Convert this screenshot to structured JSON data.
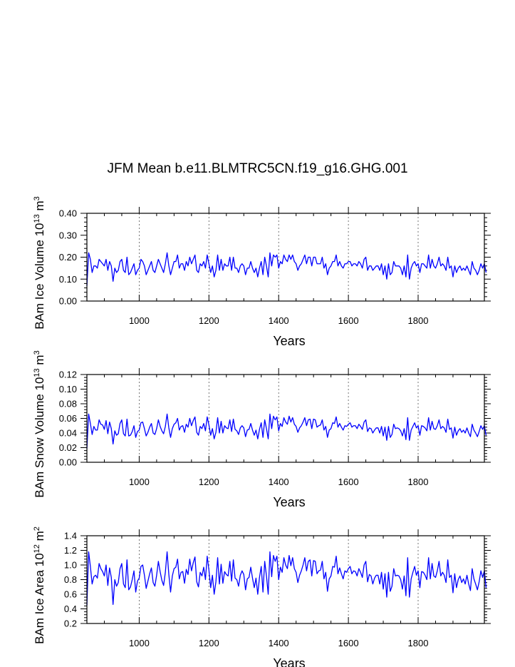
{
  "title": "JFM Mean b.e11.BLMTRC5CN.f19_g16.GHG.001",
  "series_color": "#0000ff",
  "chart_data": [
    {
      "type": "line",
      "xlabel": "Years",
      "ylabel": "BAm Ice Volume 10^13 m^3",
      "ylabel_parts": {
        "main": "BAm Ice Volume 10",
        "exp1": "13",
        "unit": " m",
        "exp2": "3"
      },
      "xlim": [
        850,
        1990
      ],
      "ylim": [
        0.0,
        0.4
      ],
      "xticks": [
        1000,
        1200,
        1400,
        1600,
        1800
      ],
      "xtick_labels": [
        "1000",
        "1200",
        "1400",
        "1600",
        "1800"
      ],
      "yticks": [
        0.0,
        0.1,
        0.2,
        0.3,
        0.4
      ],
      "ytick_labels": [
        "0.00",
        "0.10",
        "0.20",
        "0.30",
        "0.40"
      ],
      "grid": "vertical dashed at x ticks",
      "series": [
        {
          "x_start": 850,
          "x_step": 5,
          "values": [
            0.07,
            0.22,
            0.19,
            0.13,
            0.16,
            0.16,
            0.15,
            0.19,
            0.18,
            0.17,
            0.16,
            0.19,
            0.14,
            0.18,
            0.16,
            0.09,
            0.15,
            0.13,
            0.14,
            0.18,
            0.19,
            0.14,
            0.13,
            0.2,
            0.12,
            0.13,
            0.15,
            0.17,
            0.12,
            0.14,
            0.15,
            0.19,
            0.18,
            0.16,
            0.12,
            0.14,
            0.16,
            0.18,
            0.14,
            0.13,
            0.16,
            0.19,
            0.17,
            0.15,
            0.13,
            0.17,
            0.22,
            0.16,
            0.12,
            0.15,
            0.18,
            0.18,
            0.21,
            0.15,
            0.17,
            0.17,
            0.14,
            0.18,
            0.16,
            0.2,
            0.17,
            0.19,
            0.21,
            0.14,
            0.13,
            0.17,
            0.16,
            0.18,
            0.15,
            0.21,
            0.17,
            0.13,
            0.16,
            0.11,
            0.14,
            0.21,
            0.14,
            0.19,
            0.14,
            0.17,
            0.16,
            0.16,
            0.2,
            0.14,
            0.2,
            0.15,
            0.15,
            0.13,
            0.16,
            0.17,
            0.16,
            0.12,
            0.15,
            0.15,
            0.18,
            0.15,
            0.13,
            0.15,
            0.11,
            0.15,
            0.18,
            0.12,
            0.2,
            0.16,
            0.11,
            0.22,
            0.16,
            0.21,
            0.2,
            0.21,
            0.15,
            0.18,
            0.17,
            0.21,
            0.19,
            0.18,
            0.21,
            0.19,
            0.21,
            0.18,
            0.17,
            0.14,
            0.16,
            0.17,
            0.19,
            0.21,
            0.17,
            0.2,
            0.2,
            0.16,
            0.2,
            0.2,
            0.17,
            0.17,
            0.17,
            0.2,
            0.15,
            0.17,
            0.12,
            0.15,
            0.16,
            0.18,
            0.18,
            0.21,
            0.16,
            0.18,
            0.16,
            0.15,
            0.17,
            0.17,
            0.18,
            0.18,
            0.16,
            0.17,
            0.17,
            0.16,
            0.18,
            0.17,
            0.15,
            0.19,
            0.2,
            0.14,
            0.16,
            0.16,
            0.14,
            0.15,
            0.16,
            0.16,
            0.14,
            0.17,
            0.12,
            0.16,
            0.1,
            0.17,
            0.12,
            0.13,
            0.18,
            0.16,
            0.16,
            0.16,
            0.15,
            0.12,
            0.16,
            0.11,
            0.21,
            0.1,
            0.15,
            0.17,
            0.18,
            0.16,
            0.17,
            0.13,
            0.17,
            0.17,
            0.16,
            0.15,
            0.21,
            0.15,
            0.19,
            0.16,
            0.15,
            0.17,
            0.2,
            0.16,
            0.17,
            0.16,
            0.14,
            0.2,
            0.15,
            0.16,
            0.11,
            0.16,
            0.13,
            0.15,
            0.16,
            0.14,
            0.15,
            0.14,
            0.16,
            0.14,
            0.12,
            0.18,
            0.15,
            0.14,
            0.12,
            0.14,
            0.17,
            0.15,
            0.17,
            0.13
          ]
        }
      ]
    },
    {
      "type": "line",
      "xlabel": "Years",
      "ylabel": "BAm Snow Volume 10^13 m^3",
      "ylabel_parts": {
        "main": "BAm Snow Volume 10",
        "exp1": "13",
        "unit": " m",
        "exp2": "3"
      },
      "xlim": [
        850,
        1990
      ],
      "ylim": [
        0.0,
        0.12
      ],
      "xticks": [
        1000,
        1200,
        1400,
        1600,
        1800
      ],
      "xtick_labels": [
        "1000",
        "1200",
        "1400",
        "1600",
        "1800"
      ],
      "yticks": [
        0.0,
        0.02,
        0.04,
        0.06,
        0.08,
        0.1,
        0.12
      ],
      "ytick_labels": [
        "0.00",
        "0.02",
        "0.04",
        "0.06",
        "0.08",
        "0.10",
        "0.12"
      ],
      "grid": "vertical dashed at x ticks",
      "series": [
        {
          "x_start": 850,
          "x_step": 5,
          "values": [
            0.019,
            0.066,
            0.053,
            0.038,
            0.049,
            0.044,
            0.044,
            0.058,
            0.052,
            0.051,
            0.045,
            0.057,
            0.039,
            0.055,
            0.046,
            0.025,
            0.043,
            0.037,
            0.039,
            0.053,
            0.058,
            0.039,
            0.036,
            0.059,
            0.036,
            0.037,
            0.042,
            0.05,
            0.034,
            0.042,
            0.044,
            0.054,
            0.055,
            0.046,
            0.036,
            0.041,
            0.048,
            0.053,
            0.04,
            0.038,
            0.046,
            0.058,
            0.049,
            0.043,
            0.039,
            0.049,
            0.066,
            0.047,
            0.034,
            0.046,
            0.052,
            0.054,
            0.06,
            0.044,
            0.049,
            0.05,
            0.041,
            0.052,
            0.048,
            0.06,
            0.05,
            0.057,
            0.062,
            0.041,
            0.037,
            0.049,
            0.046,
            0.053,
            0.043,
            0.062,
            0.051,
            0.037,
            0.046,
            0.032,
            0.041,
            0.061,
            0.04,
            0.056,
            0.04,
            0.05,
            0.047,
            0.046,
            0.058,
            0.042,
            0.059,
            0.045,
            0.043,
            0.038,
            0.047,
            0.05,
            0.047,
            0.035,
            0.044,
            0.045,
            0.053,
            0.044,
            0.037,
            0.044,
            0.032,
            0.045,
            0.054,
            0.034,
            0.058,
            0.046,
            0.032,
            0.066,
            0.046,
            0.063,
            0.058,
            0.062,
            0.043,
            0.053,
            0.049,
            0.061,
            0.055,
            0.052,
            0.063,
            0.055,
            0.061,
            0.052,
            0.049,
            0.041,
            0.047,
            0.05,
            0.055,
            0.061,
            0.05,
            0.058,
            0.059,
            0.046,
            0.059,
            0.058,
            0.048,
            0.05,
            0.051,
            0.058,
            0.044,
            0.049,
            0.034,
            0.044,
            0.046,
            0.054,
            0.053,
            0.062,
            0.048,
            0.053,
            0.048,
            0.044,
            0.05,
            0.049,
            0.052,
            0.054,
            0.048,
            0.05,
            0.05,
            0.046,
            0.052,
            0.049,
            0.045,
            0.055,
            0.058,
            0.042,
            0.047,
            0.046,
            0.04,
            0.044,
            0.047,
            0.047,
            0.04,
            0.049,
            0.036,
            0.048,
            0.03,
            0.049,
            0.034,
            0.038,
            0.052,
            0.046,
            0.047,
            0.046,
            0.043,
            0.036,
            0.046,
            0.031,
            0.061,
            0.03,
            0.044,
            0.049,
            0.054,
            0.047,
            0.05,
            0.037,
            0.05,
            0.049,
            0.047,
            0.043,
            0.061,
            0.044,
            0.056,
            0.046,
            0.045,
            0.05,
            0.058,
            0.046,
            0.049,
            0.047,
            0.041,
            0.059,
            0.045,
            0.047,
            0.033,
            0.048,
            0.037,
            0.043,
            0.046,
            0.041,
            0.044,
            0.04,
            0.047,
            0.04,
            0.035,
            0.052,
            0.044,
            0.04,
            0.035,
            0.042,
            0.05,
            0.045,
            0.05,
            0.037
          ]
        }
      ]
    },
    {
      "type": "line",
      "xlabel": "Years",
      "ylabel": "BAm Ice Area 10^12 m^2",
      "ylabel_parts": {
        "main": "BAm Ice Area 10",
        "exp1": "12",
        "unit": " m",
        "exp2": "2"
      },
      "xlim": [
        850,
        1990
      ],
      "ylim": [
        0.2,
        1.4
      ],
      "xticks": [
        1000,
        1200,
        1400,
        1600,
        1800
      ],
      "xtick_labels": [
        "1000",
        "1200",
        "1400",
        "1600",
        "1800"
      ],
      "yticks": [
        0.2,
        0.4,
        0.6,
        0.8,
        1.0,
        1.2,
        1.4
      ],
      "ytick_labels": [
        "0.2",
        "0.4",
        "0.6",
        "0.8",
        "1.0",
        "1.2",
        "1.4"
      ],
      "grid": "vertical dashed at x ticks",
      "series": [
        {
          "x_start": 850,
          "x_step": 5,
          "values": [
            0.45,
            1.18,
            0.98,
            0.74,
            0.84,
            0.86,
            0.82,
            1.02,
            0.95,
            0.91,
            0.85,
            1.0,
            0.72,
            0.96,
            0.83,
            0.46,
            0.8,
            0.71,
            0.76,
            0.95,
            1.02,
            0.74,
            0.69,
            1.07,
            0.66,
            0.7,
            0.8,
            0.92,
            0.63,
            0.78,
            0.82,
            0.98,
            1.0,
            0.86,
            0.68,
            0.78,
            0.88,
            0.96,
            0.76,
            0.71,
            0.86,
            1.05,
            0.91,
            0.79,
            0.72,
            0.9,
            1.18,
            0.87,
            0.63,
            0.85,
            0.95,
            0.97,
            1.08,
            0.81,
            0.9,
            0.91,
            0.75,
            0.94,
            0.87,
            1.08,
            0.92,
            1.03,
            1.11,
            0.77,
            0.7,
            0.9,
            0.85,
            0.97,
            0.8,
            1.12,
            0.93,
            0.69,
            0.86,
            0.6,
            0.77,
            1.1,
            0.74,
            1.01,
            0.75,
            0.91,
            0.87,
            0.85,
            1.05,
            0.78,
            1.07,
            0.82,
            0.8,
            0.71,
            0.86,
            0.92,
            0.87,
            0.66,
            0.81,
            0.83,
            0.97,
            0.82,
            0.69,
            0.82,
            0.6,
            0.83,
            0.98,
            0.63,
            1.05,
            0.85,
            0.6,
            1.18,
            0.84,
            1.13,
            1.05,
            1.12,
            0.8,
            0.97,
            0.9,
            1.1,
            1.0,
            0.95,
            1.13,
            0.99,
            1.1,
            0.95,
            0.9,
            0.76,
            0.86,
            0.92,
            1.0,
            1.1,
            0.92,
            1.05,
            1.07,
            0.85,
            1.06,
            1.05,
            0.88,
            0.92,
            0.93,
            1.05,
            0.81,
            0.9,
            0.64,
            0.81,
            0.85,
            0.98,
            0.97,
            1.12,
            0.88,
            0.96,
            0.88,
            0.81,
            0.92,
            0.9,
            0.95,
            0.98,
            0.88,
            0.92,
            0.91,
            0.85,
            0.95,
            0.9,
            0.83,
            1.0,
            1.05,
            0.77,
            0.87,
            0.85,
            0.74,
            0.82,
            0.86,
            0.86,
            0.74,
            0.9,
            0.67,
            0.88,
            0.56,
            0.9,
            0.64,
            0.71,
            0.95,
            0.85,
            0.86,
            0.85,
            0.8,
            0.67,
            0.85,
            0.58,
            1.1,
            0.56,
            0.81,
            0.9,
            0.98,
            0.86,
            0.92,
            0.69,
            0.91,
            0.9,
            0.86,
            0.8,
            1.1,
            0.81,
            1.02,
            0.85,
            0.83,
            0.92,
            1.05,
            0.85,
            0.9,
            0.86,
            0.76,
            1.07,
            0.83,
            0.86,
            0.62,
            0.88,
            0.69,
            0.8,
            0.85,
            0.76,
            0.81,
            0.74,
            0.86,
            0.74,
            0.65,
            0.95,
            0.81,
            0.74,
            0.66,
            0.77,
            0.92,
            0.83,
            0.92,
            0.69
          ]
        }
      ]
    }
  ]
}
